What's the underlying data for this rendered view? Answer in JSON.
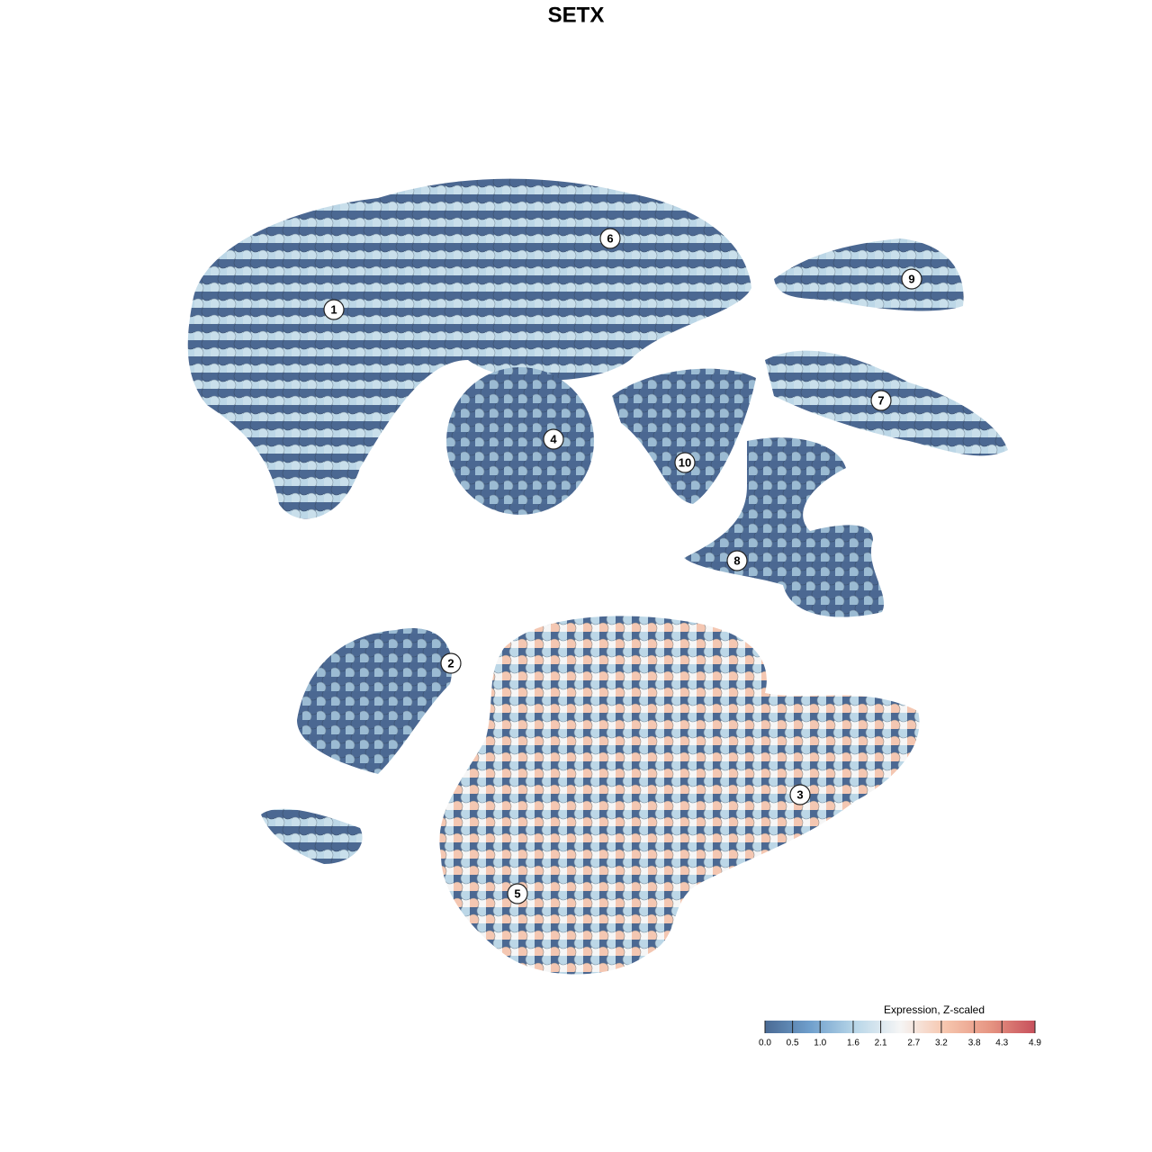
{
  "chart_data": {
    "type": "scatter",
    "title": "SETX",
    "clusters": [
      "1",
      "2",
      "3",
      "4",
      "5",
      "6",
      "7",
      "8",
      "9",
      "10"
    ],
    "colorbar": {
      "title": "Expression, Z-scaled",
      "lim": [
        0,
        4.9
      ],
      "ticks": [
        {
          "value": 0,
          "label": "0.0"
        },
        0.5,
        {
          "value": 1,
          "label": "1.0"
        },
        1.6,
        2.1,
        2.7,
        3.2,
        3.8,
        4.3,
        4.9
      ],
      "colors": [
        "#4a6a94",
        "#6f9fcc",
        "#b8d6e8",
        "#f5f5f5",
        "#f6c6ae",
        "#e69582",
        "#c7505c"
      ]
    }
  }
}
